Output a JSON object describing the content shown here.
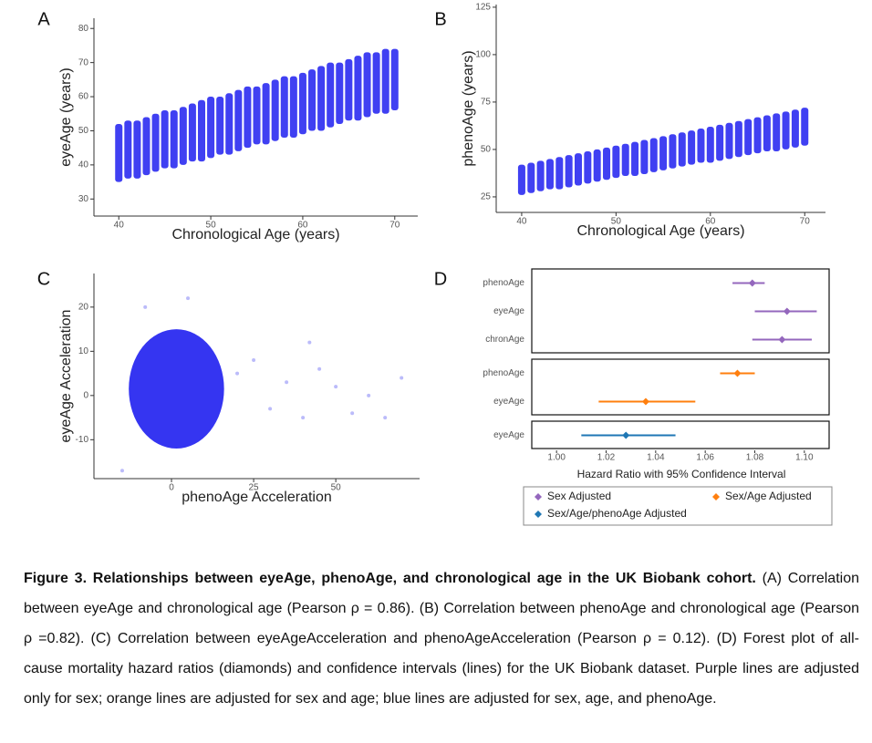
{
  "chart_data": [
    {
      "panel": "A",
      "type": "strip",
      "x_label": "Chronological Age (years)",
      "y_label": "eyeAge (years)",
      "x": [
        40,
        41,
        42,
        43,
        44,
        45,
        46,
        47,
        48,
        49,
        50,
        51,
        52,
        53,
        54,
        55,
        56,
        57,
        58,
        59,
        60,
        61,
        62,
        63,
        64,
        65,
        66,
        67,
        68,
        69,
        70
      ],
      "low": [
        35,
        36,
        36,
        37,
        38,
        39,
        39,
        40,
        41,
        41,
        42,
        43,
        43,
        44,
        45,
        46,
        46,
        47,
        48,
        48,
        49,
        50,
        50,
        51,
        52,
        53,
        53,
        54,
        55,
        55,
        56
      ],
      "high": [
        52,
        53,
        53,
        54,
        55,
        56,
        56,
        57,
        58,
        59,
        60,
        60,
        61,
        62,
        63,
        63,
        64,
        65,
        66,
        66,
        67,
        68,
        69,
        70,
        70,
        71,
        72,
        73,
        73,
        74,
        74
      ],
      "color": "#1f1ff0",
      "xlim": [
        37.3,
        72.5
      ],
      "ylim": [
        25,
        83
      ],
      "xticks": [
        40,
        50,
        60,
        70
      ],
      "yticks": [
        30,
        40,
        50,
        60,
        70,
        80
      ]
    },
    {
      "panel": "B",
      "type": "strip",
      "x_label": "Chronological Age (years)",
      "y_label": "phenoAge (years)",
      "x": [
        40,
        41,
        42,
        43,
        44,
        45,
        46,
        47,
        48,
        49,
        50,
        51,
        52,
        53,
        54,
        55,
        56,
        57,
        58,
        59,
        60,
        61,
        62,
        63,
        64,
        65,
        66,
        67,
        68,
        69,
        70
      ],
      "low": [
        26,
        27,
        28,
        29,
        29,
        30,
        31,
        32,
        33,
        34,
        35,
        36,
        36,
        37,
        38,
        39,
        40,
        41,
        42,
        43,
        43,
        44,
        45,
        46,
        47,
        48,
        49,
        49,
        50,
        51,
        52
      ],
      "high": [
        42,
        43,
        44,
        45,
        46,
        47,
        48,
        49,
        50,
        51,
        52,
        53,
        54,
        55,
        56,
        57,
        58,
        59,
        60,
        61,
        62,
        63,
        64,
        65,
        66,
        67,
        68,
        69,
        70,
        71,
        72
      ],
      "color": "#1f1ff0",
      "xlim": [
        37.3,
        72.2
      ],
      "ylim": [
        16.8,
        126.4
      ],
      "xticks": [
        40,
        50,
        60,
        70
      ],
      "yticks": [
        25,
        50,
        75,
        100,
        125
      ]
    },
    {
      "panel": "C",
      "type": "scatter",
      "x_label": "phenoAge Acceleration",
      "y_label": "eyeAge Acceleration",
      "cloud": {
        "x": [
          -13,
          16
        ],
        "y": [
          -12,
          15
        ]
      },
      "x": [
        20,
        25,
        30,
        35,
        40,
        45,
        50,
        55,
        42,
        60,
        65,
        70,
        -15,
        -8,
        5
      ],
      "y": [
        5,
        8,
        -3,
        3,
        -5,
        6,
        2,
        -4,
        12,
        0,
        -5,
        4,
        -17,
        20,
        22
      ],
      "color": "#1f1ff0",
      "xlim": [
        -23.6,
        75.5
      ],
      "ylim": [
        -18.8,
        27.6
      ],
      "xticks": [
        0,
        25,
        50
      ],
      "yticks": [
        -10,
        0,
        10,
        20
      ]
    },
    {
      "panel": "D",
      "type": "forest",
      "x_label": "Hazard Ratio with 95% Confidence Interval",
      "groups": [
        {
          "name": "Sex Adjusted",
          "color": "#9467bd",
          "labels": [
            "phenoAge",
            "eyeAge",
            "chronAge"
          ],
          "values": [
            1.079,
            1.093,
            1.091
          ],
          "lower": [
            1.071,
            1.08,
            1.079
          ],
          "upper": [
            1.084,
            1.105,
            1.103
          ]
        },
        {
          "name": "Sex/Age Adjusted",
          "color": "#ff7f0e",
          "labels": [
            "phenoAge",
            "eyeAge"
          ],
          "values": [
            1.073,
            1.036
          ],
          "lower": [
            1.066,
            1.017
          ],
          "upper": [
            1.08,
            1.056
          ]
        },
        {
          "name": "Sex/Age/phenoAge Adjusted",
          "color": "#1f77b4",
          "labels": [
            "eyeAge"
          ],
          "values": [
            1.028
          ],
          "lower": [
            1.01
          ],
          "upper": [
            1.048
          ]
        }
      ],
      "xlim": [
        0.99,
        1.11
      ],
      "xticks": [
        {
          "value": 1.0,
          "label": "1.00"
        },
        1.02,
        1.04,
        1.06,
        1.08,
        {
          "value": 1.1,
          "label": "1.10"
        }
      ]
    }
  ],
  "caption": {
    "bold": "Figure 3. Relationships between eyeAge, phenoAge, and chronological age in the UK Biobank cohort.",
    "text": "(A) Correlation between eyeAge and chronological age (Pearson ρ = 0.86). (B) Correlation between phenoAge and chronological age (Pearson ρ =0.82). (C) Correlation between eyeAgeAcceleration and phenoAgeAcceleration (Pearson ρ = 0.12). (D) Forest plot of all-cause mortality hazard ratios (diamonds) and confidence intervals (lines) for the UK Biobank dataset.  Purple lines are adjusted only for sex; orange lines are adjusted for sex and age; blue lines are adjusted for sex, age, and phenoAge."
  }
}
